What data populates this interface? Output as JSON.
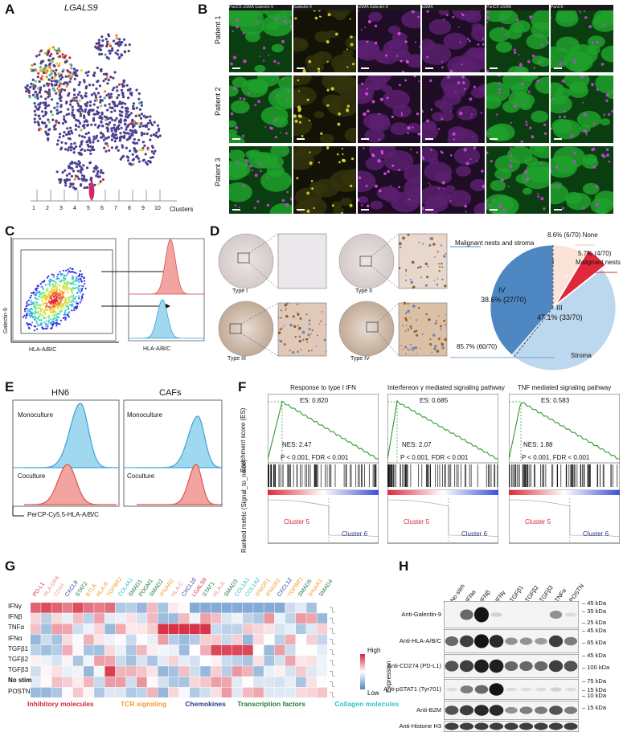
{
  "panel_labels": [
    "A",
    "B",
    "C",
    "D",
    "E",
    "F",
    "G",
    "H"
  ],
  "panelA": {
    "title": "LGALS9",
    "xlabel": "Clusters",
    "clusters": [
      "1",
      "2",
      "3",
      "4",
      "5",
      "6",
      "7",
      "8",
      "9",
      "10"
    ]
  },
  "panelB": {
    "patients": [
      "Patient 1",
      "Patient 2",
      "Patient 3"
    ],
    "headers": [
      "PanCK  αSMA  Galectin-9",
      "Galectin-9",
      "αSMA  Galectin-9",
      "αSMA",
      "PanCK  αSMA",
      "PanCK"
    ]
  },
  "panelC": {
    "ylabel": "Galectin-9",
    "xlabel": "HLA-A/B/C",
    "hist_xlabel": "HLA-A/B/C"
  },
  "panelD": {
    "types": [
      "Type I",
      "Type II",
      "Type III",
      "Type IV"
    ],
    "pie_labels": {
      "malignant_stroma": "Malignant nests and stroma",
      "none": "8.6% (6/70)  None",
      "malignant": "5.7% (4/70)",
      "malignant_name": "Malignant nests",
      "iv": "IV",
      "iv_pct": "38.6% (27/70)",
      "iii": "III",
      "iii_pct": "47.1% (33/70)",
      "i": "I",
      "ii": "II",
      "stroma_total": "85.7% (60/70)",
      "stroma": "Stroma"
    },
    "colors": {
      "iv": "#4f87c3",
      "iii": "#bcd8ee",
      "i": "#fbe3d8",
      "ii": "#e0283a"
    }
  },
  "panelE": {
    "titles": [
      "HN6",
      "CAFs"
    ],
    "mono": "Monoculture",
    "co": "Coculture",
    "xlabel": "PerCP-Cy5.5-HLA-A/B/C"
  },
  "panelF": {
    "ylabel_top": "Enrichment score (ES)",
    "ylabel_bottom": "Ranked metric (Signal_to_noise)",
    "plots": [
      {
        "title": "Response to type I IFN",
        "es": "ES: 0.820",
        "nes": "NES: 2.47",
        "p": "P < 0.001, FDR < 0.001"
      },
      {
        "title": "Interfereon γ mediated signaling pathway",
        "es": "ES: 0.685",
        "nes": "NES: 2.07",
        "p": "P < 0.001, FDR < 0.001"
      },
      {
        "title": "TNF mediated signaling pathway",
        "es": "ES: 0.583",
        "nes": "NES: 1.88",
        "p": "P < 0.001, FDR < 0.001"
      }
    ],
    "cluster5": "Cluster 5",
    "cluster6": "Cluster 6"
  },
  "panelG": {
    "genes": [
      "PD-L1",
      "HLA-DPA",
      "CD44",
      "CXCL9",
      "STAT2",
      "BTLA",
      "HLA-B",
      "TGFBR2",
      "COL4A1",
      "SMAD1",
      "PDGM1",
      "SMAD2",
      "IFNAR2",
      "HLA-C",
      "CXCL10",
      "LGALS9",
      "STAT1",
      "HLA-A",
      "SMAD3",
      "COL1A1",
      "COL1A2",
      "IFNGR1",
      "IFNGR2",
      "CXCL12",
      "TGFBR1",
      "SMAD5",
      "IFNAR1",
      "SMAD4"
    ],
    "gene_colors": [
      "#d7263d",
      "#f08a8a",
      "#f5a58a",
      "#2b3a8c",
      "#1f7a3a",
      "#f39c2c",
      "#f39c2c",
      "#f39c2c",
      "#2ec4c4",
      "#1f7a3a",
      "#1f7a3a",
      "#1f7a3a",
      "#f39c2c",
      "#f08a8a",
      "#2b3a8c",
      "#d7263d",
      "#1f7a3a",
      "#f08a8a",
      "#1f7a3a",
      "#2ec4c4",
      "#2ec4c4",
      "#f39c2c",
      "#f39c2c",
      "#2b3a8c",
      "#f39c2c",
      "#1f7a3a",
      "#f39c2c",
      "#1f7a3a"
    ],
    "conditions": [
      "IFNγ",
      "IFNβ",
      "TNFα",
      "IFNα",
      "TGFβ1",
      "TGFβ2",
      "TGFβ3",
      "No stim",
      "POSTN"
    ],
    "legend_high": "High",
    "legend_low": "Low",
    "legend_title": "Expression",
    "categories": [
      {
        "label": "Inhibitory molecules",
        "color": "#d7263d"
      },
      {
        "label": "TCR signaling",
        "color": "#f39c2c"
      },
      {
        "label": "Chemokines",
        "color": "#2b3a8c"
      },
      {
        "label": "Transcription factors",
        "color": "#1f7a3a"
      },
      {
        "label": "Collagen molecules",
        "color": "#2ec4c4"
      }
    ]
  },
  "panelH": {
    "lanes": [
      "No stim",
      "IFNα",
      "IFNβ",
      "IFNγ",
      "TGFβ1",
      "TGFβ2",
      "TGFβ3",
      "TNFα",
      "POSTN"
    ],
    "blots": [
      "Anti-Galectin-9",
      "Anti-HLA-A/B/C",
      "Anti-CD274 (PD-L1)",
      "Anti-pSTAT1 (Tyr701)",
      "Anti-B2M",
      "Anti-Histone H3"
    ],
    "kda": [
      "45 kDa",
      "35 kDa",
      "25 kDa",
      "45 kDa",
      "65 kDa",
      "45 kDa",
      "100 kDa",
      "75 kDa",
      "15 kDa",
      "10 kDa",
      "15 kDa"
    ]
  }
}
